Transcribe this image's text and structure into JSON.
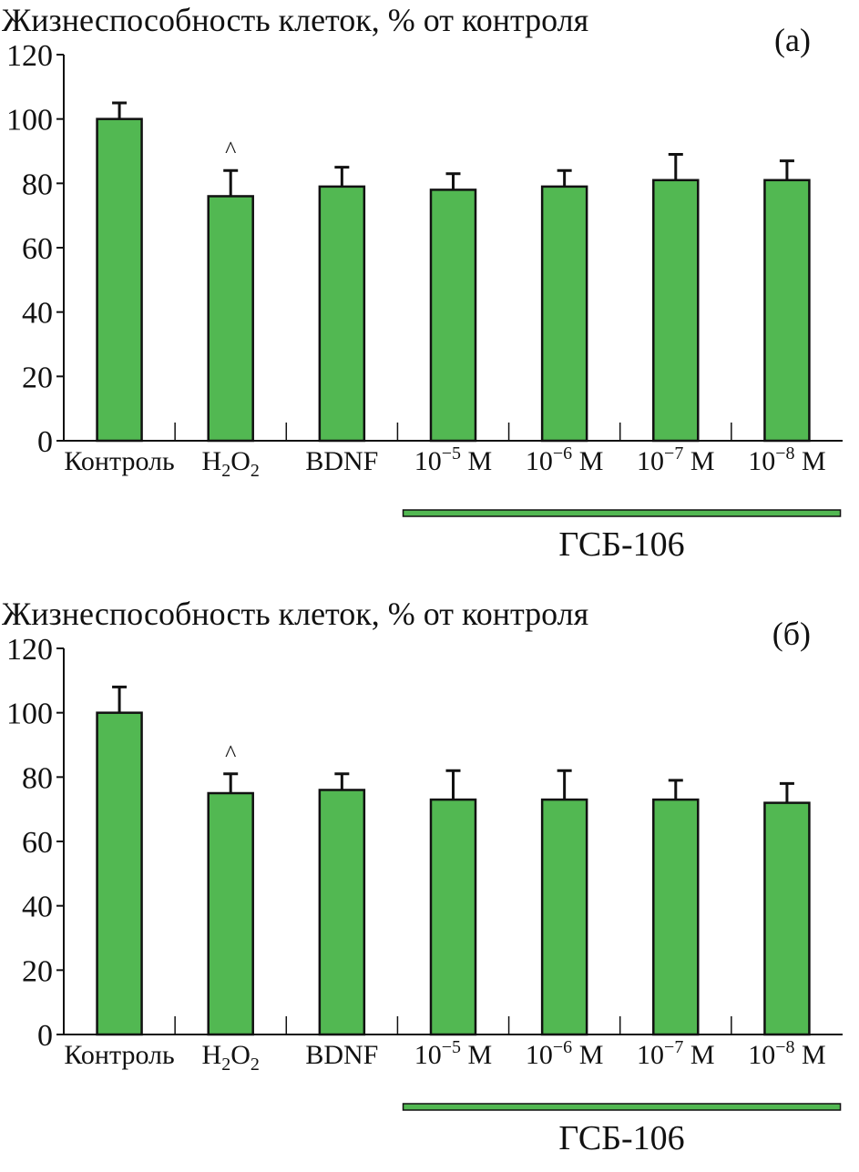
{
  "colors": {
    "bar": "#52b852",
    "bar_stroke": "#111111",
    "axis": "#111111",
    "drug_line": "#52b852"
  },
  "chart_data": [
    {
      "type": "bar",
      "panel_label": "(а)",
      "ylabel": "Жизнеспособность клеток, % от контроля",
      "ylim": [
        0,
        120
      ],
      "yticks": [
        "0",
        "20",
        "40",
        "60",
        "80",
        "100",
        "120"
      ],
      "categories": [
        {
          "label": "Контроль"
        },
        {
          "label": "H",
          "sub": "2",
          "label2": "O",
          "sub2": "2"
        },
        {
          "label": "BDNF"
        },
        {
          "label": "10",
          "sup": "−5",
          "suffix": " М"
        },
        {
          "label": "10",
          "sup": "−6",
          "suffix": " М"
        },
        {
          "label": "10",
          "sup": "−7",
          "suffix": " М"
        },
        {
          "label": "10",
          "sup": "−8",
          "suffix": " М"
        }
      ],
      "values": [
        100,
        76,
        79,
        78,
        79,
        81,
        81
      ],
      "errors": [
        5,
        8,
        6,
        5,
        5,
        8,
        6
      ],
      "markers": [
        "",
        "^",
        "",
        "",
        "",
        "",
        ""
      ],
      "group": {
        "label": "ГСБ-106",
        "from": 3,
        "to": 6
      }
    },
    {
      "type": "bar",
      "panel_label": "(б)",
      "ylabel": "Жизнеспособность клеток, % от контроля",
      "ylim": [
        0,
        120
      ],
      "yticks": [
        "0",
        "20",
        "40",
        "60",
        "80",
        "100",
        "120"
      ],
      "categories": [
        {
          "label": "Контроль"
        },
        {
          "label": "H",
          "sub": "2",
          "label2": "O",
          "sub2": "2"
        },
        {
          "label": "BDNF"
        },
        {
          "label": "10",
          "sup": "−5",
          "suffix": " М"
        },
        {
          "label": "10",
          "sup": "−6",
          "suffix": " М"
        },
        {
          "label": "10",
          "sup": "−7",
          "suffix": " М"
        },
        {
          "label": "10",
          "sup": "−8",
          "suffix": " М"
        }
      ],
      "values": [
        100,
        75,
        76,
        73,
        73,
        73,
        72
      ],
      "errors": [
        8,
        6,
        5,
        9,
        9,
        6,
        6
      ],
      "markers": [
        "",
        "^",
        "",
        "",
        "",
        "",
        ""
      ],
      "group": {
        "label": "ГСБ-106",
        "from": 3,
        "to": 6
      }
    }
  ]
}
